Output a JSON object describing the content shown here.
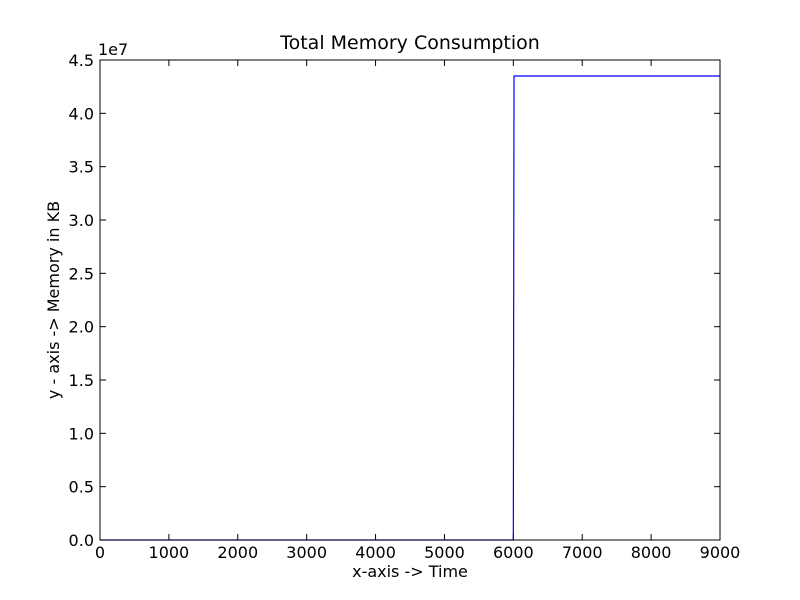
{
  "chart_data": {
    "type": "line",
    "title": "Total Memory Consumption",
    "xlabel": "x-axis -> Time",
    "ylabel": "y - axis -> Memory in KB",
    "y_offset_label": "1e7",
    "xlim": [
      0,
      9000
    ],
    "ylim": [
      0,
      4.5
    ],
    "y_scale": 10000000,
    "x_ticks": [
      0,
      1000,
      2000,
      3000,
      4000,
      5000,
      6000,
      7000,
      8000,
      9000
    ],
    "x_tick_labels": [
      "0",
      "1000",
      "2000",
      "3000",
      "4000",
      "5000",
      "6000",
      "7000",
      "8000",
      "9000"
    ],
    "y_ticks": [
      0,
      0.5,
      1.0,
      1.5,
      2.0,
      2.5,
      3.0,
      3.5,
      4.0,
      4.5
    ],
    "y_tick_labels": [
      "0.0",
      "0.5",
      "1.0",
      "1.5",
      "2.0",
      "2.5",
      "3.0",
      "3.5",
      "4.0",
      "4.5"
    ],
    "grid": false,
    "series": [
      {
        "color": "#0000ff",
        "points": [
          [
            0,
            0
          ],
          [
            6000,
            0
          ],
          [
            6010,
            4.35
          ],
          [
            9000,
            4.35
          ]
        ]
      }
    ]
  }
}
